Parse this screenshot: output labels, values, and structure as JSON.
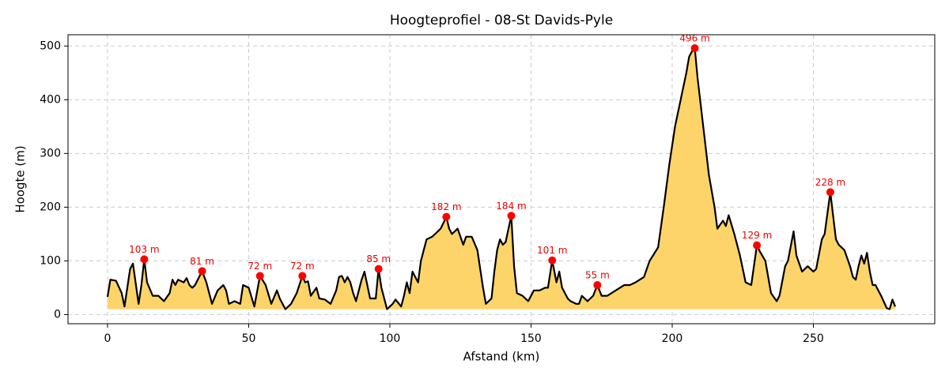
{
  "chart_data": {
    "type": "area",
    "title": "Hoogteprofiel - 08-St Davids-Pyle",
    "x_label": "Afstand (km)",
    "y_label": "Hoogte (m)",
    "xlim": [
      -14,
      293
    ],
    "ylim": [
      -17,
      521
    ],
    "xticks": [
      0,
      50,
      100,
      150,
      200,
      250
    ],
    "yticks": [
      0,
      100,
      200,
      300,
      400,
      500
    ],
    "grid": true,
    "series": [
      {
        "color": "#000000",
        "fill": "#fcd46a",
        "x": [
          0,
          1,
          3,
          5,
          6,
          8,
          9,
          11,
          12,
          13,
          14,
          16,
          18,
          20,
          22,
          23,
          24,
          25,
          27,
          28,
          29,
          30,
          31,
          33.5,
          35,
          37,
          39,
          41,
          42,
          43,
          45,
          47,
          48,
          50,
          52,
          54,
          56,
          58,
          60,
          61,
          63,
          65,
          67,
          69,
          70,
          71,
          72,
          74,
          75,
          77,
          79,
          81,
          82,
          83,
          84,
          85,
          86,
          87,
          88,
          90,
          91,
          92,
          93,
          95,
          96,
          97,
          99,
          101,
          102,
          104,
          105,
          106,
          107,
          108,
          110,
          111,
          113,
          115,
          116,
          118,
          120,
          121,
          122,
          124,
          126,
          127,
          129,
          131,
          133,
          134,
          136,
          137,
          138,
          139,
          140,
          141,
          143,
          144,
          145,
          147,
          149,
          151,
          153,
          155,
          156,
          157.5,
          159,
          160,
          161,
          163,
          164,
          166,
          167,
          168,
          170,
          172,
          173.5,
          175,
          177,
          180,
          183,
          185,
          187,
          190,
          192,
          195,
          197,
          199,
          201,
          203,
          205,
          206,
          207,
          208,
          209,
          211,
          213,
          215,
          216,
          218,
          219,
          220,
          222,
          224,
          226,
          228,
          230,
          231,
          233,
          235,
          237,
          238,
          240,
          241,
          243,
          244,
          246,
          248,
          250,
          251,
          253,
          254,
          256,
          258,
          259,
          261,
          263,
          264,
          265,
          266,
          267,
          268,
          269,
          270,
          271,
          272,
          274,
          276,
          277,
          278,
          279
        ],
        "values": [
          33,
          65,
          63,
          40,
          15,
          85,
          95,
          20,
          55,
          103,
          60,
          35,
          35,
          25,
          40,
          65,
          55,
          65,
          60,
          68,
          55,
          50,
          55,
          81,
          60,
          20,
          45,
          55,
          45,
          20,
          25,
          20,
          55,
          50,
          15,
          72,
          55,
          20,
          45,
          30,
          10,
          20,
          40,
          72,
          60,
          62,
          35,
          50,
          30,
          28,
          20,
          45,
          70,
          72,
          60,
          70,
          60,
          40,
          25,
          65,
          80,
          55,
          30,
          30,
          85,
          50,
          10,
          20,
          28,
          15,
          35,
          60,
          40,
          80,
          60,
          100,
          140,
          145,
          150,
          160,
          182,
          160,
          150,
          160,
          130,
          145,
          145,
          120,
          50,
          20,
          30,
          80,
          120,
          140,
          130,
          135,
          184,
          90,
          40,
          35,
          25,
          45,
          45,
          50,
          50,
          101,
          60,
          80,
          50,
          30,
          25,
          20,
          20,
          35,
          25,
          35,
          55,
          35,
          35,
          45,
          55,
          55,
          60,
          70,
          100,
          125,
          200,
          280,
          350,
          400,
          450,
          480,
          490,
          496,
          440,
          350,
          260,
          200,
          160,
          175,
          165,
          185,
          150,
          110,
          60,
          55,
          129,
          118,
          100,
          40,
          25,
          35,
          90,
          100,
          155,
          110,
          80,
          90,
          80,
          85,
          140,
          150,
          228,
          140,
          130,
          120,
          90,
          70,
          65,
          90,
          110,
          95,
          115,
          80,
          55,
          55,
          35,
          12,
          10,
          28,
          15
        ]
      },
      {
        "color": "#ff0000",
        "x": [
          13,
          33.5,
          54,
          69,
          96,
          120,
          143,
          157.5,
          173.5,
          208,
          230,
          256
        ],
        "values": [
          103,
          81,
          72,
          72,
          85,
          182,
          184,
          101,
          55,
          496,
          129,
          228
        ],
        "value_labels": [
          "103 m",
          "81 m",
          "72 m",
          "72 m",
          "85 m",
          "182 m",
          "184 m",
          "101 m",
          "55 m",
          "496 m",
          "129 m",
          "228 m"
        ]
      }
    ]
  }
}
